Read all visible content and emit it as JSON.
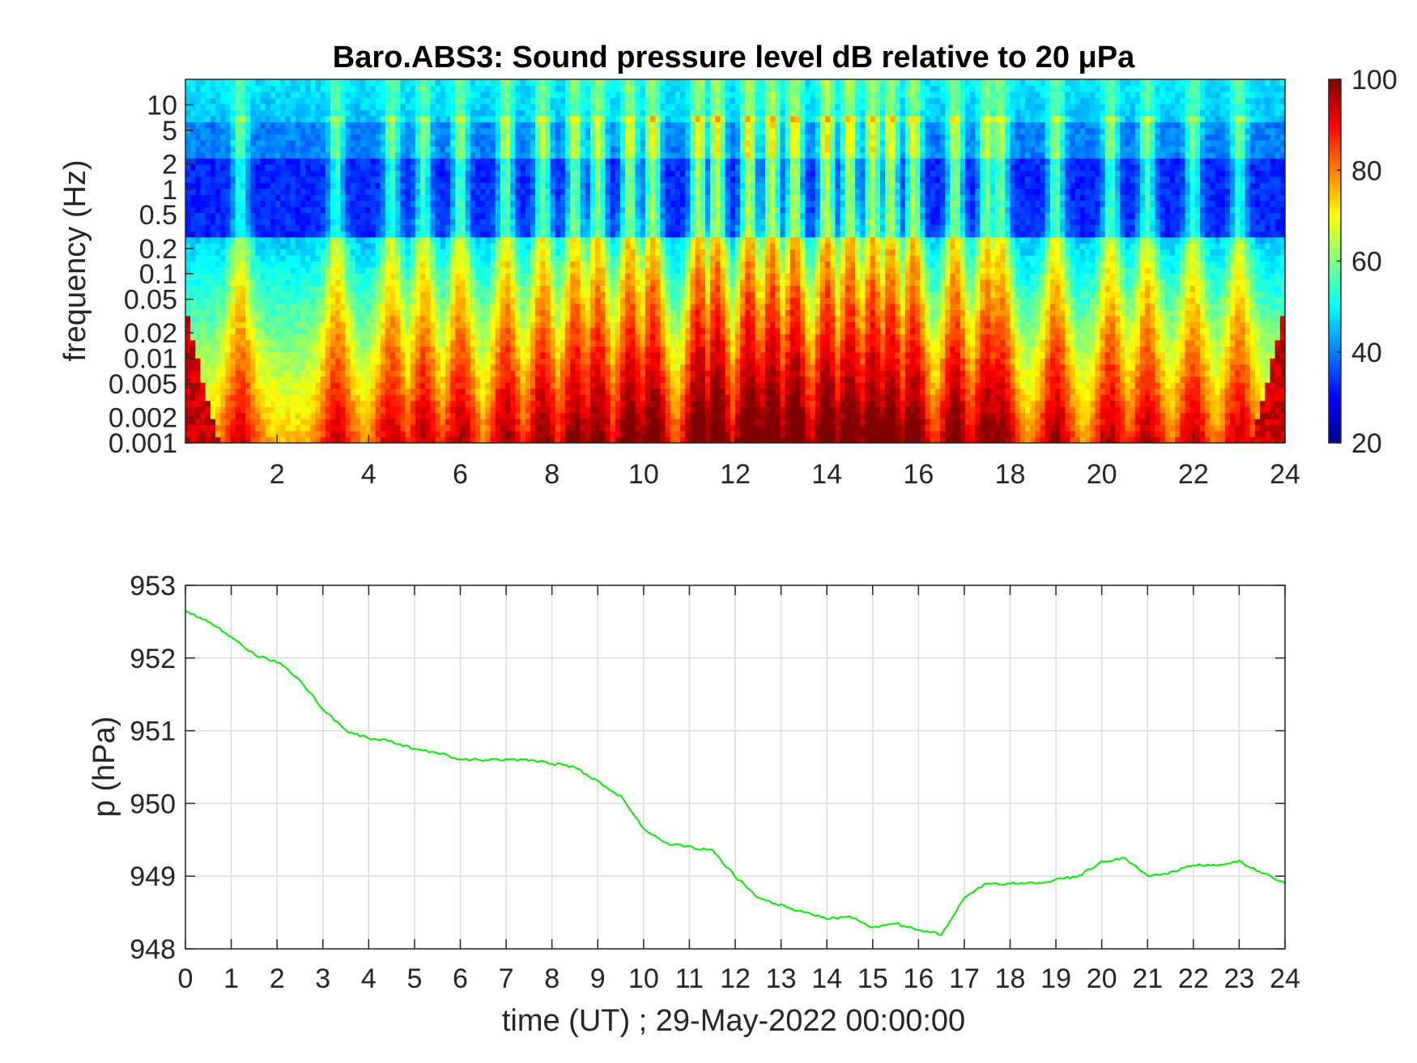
{
  "chart_data": [
    {
      "type": "heatmap",
      "title": "Baro.ABS3: Sound pressure level dB relative to 20 μPa",
      "ylabel": "frequency (Hz)",
      "xlabel": "",
      "x_ticks": [
        "2",
        "4",
        "6",
        "8",
        "10",
        "12",
        "14",
        "16",
        "18",
        "20",
        "22",
        "24"
      ],
      "x_tick_values": [
        2,
        4,
        6,
        8,
        10,
        12,
        14,
        16,
        18,
        20,
        22,
        24
      ],
      "xlim": [
        0,
        24
      ],
      "y_scale": "log",
      "ylim": [
        0.001,
        20
      ],
      "y_ticks": [
        "0.001",
        "0.002",
        "0.005",
        "0.01",
        "0.02",
        "0.05",
        "0.1",
        "0.2",
        "0.5",
        "1",
        "2",
        "5",
        "10"
      ],
      "y_tick_values": [
        0.001,
        0.002,
        0.005,
        0.01,
        0.02,
        0.05,
        0.1,
        0.2,
        0.5,
        1,
        2,
        5,
        10
      ],
      "colorbar": {
        "colormap": "jet",
        "range": [
          20,
          100
        ],
        "ticks": [
          "20",
          "40",
          "60",
          "80",
          "100"
        ],
        "tick_values": [
          20,
          40,
          60,
          80,
          100
        ]
      },
      "bursts_hours": [
        1.2,
        3.3,
        4.5,
        5.2,
        6.0,
        7.0,
        7.8,
        8.5,
        9.0,
        9.7,
        10.2,
        11.2,
        11.6,
        12.3,
        12.8,
        13.3,
        14.0,
        14.5,
        15.0,
        15.4,
        15.9,
        16.8,
        17.5,
        17.8,
        19.0,
        20.2,
        21.0,
        22.0,
        23.0
      ]
    },
    {
      "type": "line",
      "title": "",
      "xlabel": "time (UT) ; 29-May-2022 00:00:00",
      "ylabel": "p (hPa)",
      "xlim": [
        0,
        24
      ],
      "ylim": [
        948,
        953
      ],
      "grid": true,
      "x_ticks": [
        "0",
        "1",
        "2",
        "3",
        "4",
        "5",
        "6",
        "7",
        "8",
        "9",
        "10",
        "11",
        "12",
        "13",
        "14",
        "15",
        "16",
        "17",
        "18",
        "19",
        "20",
        "21",
        "22",
        "23",
        "24"
      ],
      "x_tick_values": [
        0,
        1,
        2,
        3,
        4,
        5,
        6,
        7,
        8,
        9,
        10,
        11,
        12,
        13,
        14,
        15,
        16,
        17,
        18,
        19,
        20,
        21,
        22,
        23,
        24
      ],
      "y_ticks": [
        "948",
        "949",
        "950",
        "951",
        "952",
        "953"
      ],
      "y_tick_values": [
        948,
        949,
        950,
        951,
        952,
        953
      ],
      "series": [
        {
          "color": "#00ee00",
          "x": [
            0,
            0.5,
            1,
            1.5,
            2,
            2.5,
            3,
            3.5,
            4,
            4.5,
            5,
            5.5,
            6,
            6.5,
            7,
            7.5,
            8,
            8.5,
            9,
            9.5,
            10,
            10.5,
            11,
            11.5,
            12,
            12.5,
            13,
            13.5,
            14,
            14.5,
            15,
            15.5,
            16,
            16.5,
            17,
            17.5,
            18,
            18.5,
            19,
            19.5,
            20,
            20.5,
            21,
            21.5,
            22,
            22.5,
            23,
            23.5,
            24
          ],
          "y": [
            952.65,
            952.5,
            952.3,
            952.05,
            951.95,
            951.7,
            951.3,
            951.0,
            950.9,
            950.85,
            950.75,
            950.7,
            950.6,
            950.6,
            950.6,
            950.6,
            950.55,
            950.5,
            950.3,
            950.1,
            949.65,
            949.45,
            949.4,
            949.35,
            949.0,
            948.7,
            948.6,
            948.5,
            948.42,
            948.45,
            948.3,
            948.35,
            948.25,
            948.2,
            948.7,
            948.9,
            948.9,
            948.9,
            948.95,
            949.0,
            949.2,
            949.25,
            949.0,
            949.05,
            949.15,
            949.15,
            949.2,
            949.05,
            948.9
          ]
        }
      ]
    }
  ]
}
